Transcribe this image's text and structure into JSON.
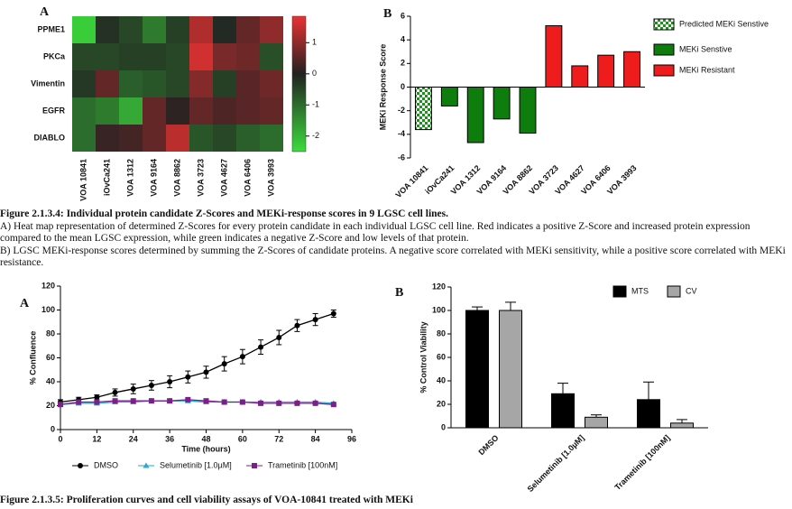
{
  "chart_data": [
    {
      "type": "heatmap",
      "panel": "A",
      "rows": [
        "PPME1",
        "PKCa",
        "Vimentin",
        "EGFR",
        "DIABLO"
      ],
      "columns": [
        "VOA 10841",
        "iOvCa241",
        "VOA 1312",
        "VOA 9164",
        "VOA 8862",
        "VOA 3723",
        "VOA 4627",
        "VOA 6406",
        "VOA 3993"
      ],
      "values": [
        [
          -2.3,
          -0.2,
          -0.5,
          -1.2,
          -0.4,
          1.3,
          -0.1,
          0.6,
          1.0
        ],
        [
          -0.5,
          -0.5,
          -0.4,
          -0.4,
          -0.5,
          1.6,
          0.8,
          0.7,
          -0.6
        ],
        [
          -0.3,
          0.6,
          -0.8,
          -0.7,
          -0.5,
          0.9,
          -0.4,
          0.5,
          0.7
        ],
        [
          -1.0,
          -1.2,
          -1.8,
          0.6,
          0.1,
          0.6,
          0.4,
          0.5,
          0.6
        ],
        [
          -1.0,
          0.2,
          0.3,
          0.6,
          1.4,
          -0.7,
          -0.5,
          -0.8,
          -1.0
        ]
      ],
      "zlim": [
        -2.5,
        1.85
      ],
      "zticks": [
        1,
        0,
        -1,
        -2
      ]
    },
    {
      "type": "bar",
      "panel": "B",
      "ylabel": "MEKi Response Score",
      "categories": [
        "VOA 10841",
        "iOvCa241",
        "VOA 1312",
        "VOA 9164",
        "VOA 8862",
        "VOA 3723",
        "VOA 4627",
        "VOA 6406",
        "VOA 3993"
      ],
      "series": [
        {
          "name": "Predicted MEKi Senstive",
          "color": "#1f8f1f",
          "pattern": "checker",
          "values": [
            -3.6,
            null,
            null,
            null,
            null,
            null,
            null,
            null,
            null
          ]
        },
        {
          "name": "MEKi Senstive",
          "color": "#0e7d0e",
          "values": [
            null,
            -1.6,
            -4.7,
            -2.7,
            -3.9,
            null,
            null,
            null,
            null
          ]
        },
        {
          "name": "MEKi Resistant",
          "color": "#ee1c1c",
          "values": [
            null,
            null,
            null,
            null,
            null,
            5.2,
            1.8,
            2.7,
            3.0
          ]
        }
      ],
      "ylim": [
        -6,
        6
      ],
      "yticks": [
        -6,
        -4,
        -2,
        0,
        2,
        4,
        6
      ]
    },
    {
      "type": "line",
      "panel": "A",
      "xlabel": "Time (hours)",
      "ylabel": "% Confluence",
      "x": [
        0,
        6,
        12,
        18,
        24,
        30,
        36,
        42,
        48,
        54,
        60,
        66,
        72,
        78,
        84,
        90
      ],
      "series": [
        {
          "name": "DMSO",
          "color": "#000000",
          "marker": "circle",
          "values": [
            23,
            25,
            27,
            31,
            34,
            37,
            40,
            44,
            48,
            55,
            61,
            69,
            77,
            87,
            92,
            97
          ],
          "errors": [
            2,
            2,
            2,
            3,
            4,
            4,
            5,
            5,
            5,
            6,
            6,
            6,
            6,
            5,
            5,
            3
          ]
        },
        {
          "name": "Selumetinib [1.0µM]",
          "color": "#2aa6d8",
          "marker": "triangle",
          "values": [
            21,
            22,
            22,
            23,
            23,
            24,
            24,
            24,
            23,
            23,
            23,
            23,
            23,
            23,
            23,
            22
          ]
        },
        {
          "name": "Trametinib [100nM]",
          "color": "#7b1f8a",
          "marker": "square",
          "values": [
            21,
            23,
            23,
            24,
            24,
            24,
            24,
            25,
            24,
            23,
            23,
            22,
            22,
            22,
            22,
            21
          ]
        }
      ],
      "xlim": [
        0,
        96
      ],
      "xticks": [
        0,
        12,
        24,
        36,
        48,
        60,
        72,
        84,
        96
      ],
      "ylim": [
        0,
        120
      ],
      "yticks": [
        0,
        20,
        40,
        60,
        80,
        100,
        120
      ]
    },
    {
      "type": "bar",
      "panel": "B",
      "ylabel": "% Control Viability",
      "categories": [
        "DMSO",
        "Selumetinib [1.0µM]",
        "Trametinib [100nM]"
      ],
      "series": [
        {
          "name": "MTS",
          "color": "#000000",
          "values": [
            100,
            29,
            24
          ],
          "errors": [
            3,
            9,
            15
          ]
        },
        {
          "name": "CV",
          "color": "#a6a6a6",
          "values": [
            100,
            9,
            4
          ],
          "errors": [
            7,
            2,
            3
          ]
        }
      ],
      "ylim": [
        0,
        120
      ],
      "yticks": [
        0,
        20,
        40,
        60,
        80,
        100,
        120
      ]
    }
  ],
  "captions": [
    {
      "title": "Figure 2.1.3.4: Individual protein candidate Z-Scores and MEKi-response scores in 9 LGSC cell lines.",
      "lines": [
        "A) Heat map representation of determined Z-Scores for every protein candidate in each individual LGSC cell line. Red indicates a positive Z-Score and increased protein expression compared to the mean LGSC expression, while green indicates a negative Z-Score and low levels of that protein.",
        "B) LGSC MEKi-response scores determined by summing the Z-Scores of candidate proteins. A negative score correlated with MEKi sensitivity, while a positive score correlated with MEKi resistance."
      ]
    },
    {
      "title": "Figure 2.1.3.5: Proliferation curves and cell viability assays of VOA-10841 treated with MEKi",
      "lines": []
    }
  ]
}
